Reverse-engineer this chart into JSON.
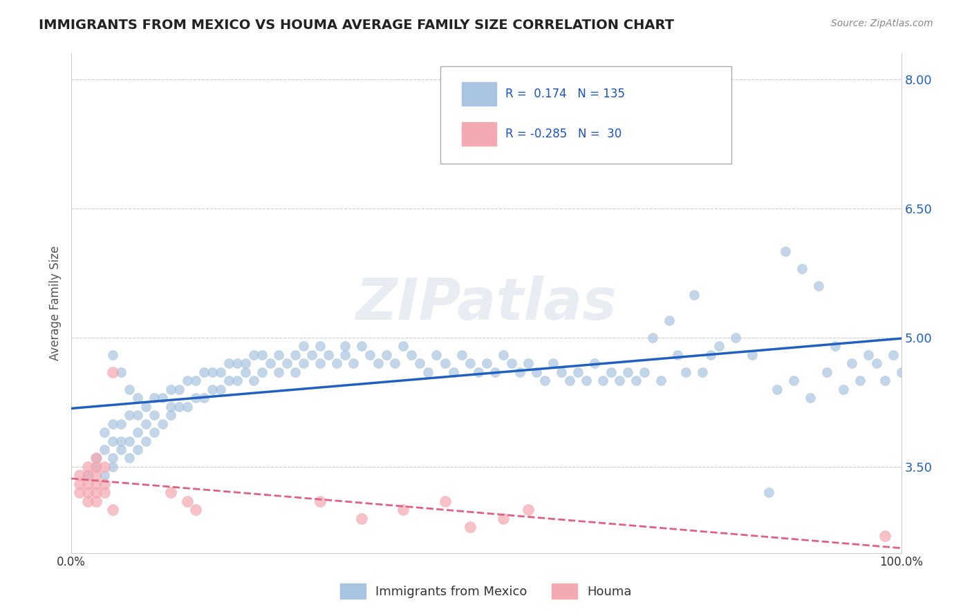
{
  "title": "IMMIGRANTS FROM MEXICO VS HOUMA AVERAGE FAMILY SIZE CORRELATION CHART",
  "source_text": "Source: ZipAtlas.com",
  "xlabel": "",
  "ylabel": "Average Family Size",
  "xmin": 0.0,
  "xmax": 1.0,
  "ymin": 2.5,
  "ymax": 8.3,
  "yticks": [
    3.5,
    5.0,
    6.5,
    8.0
  ],
  "xticks": [
    0.0,
    1.0
  ],
  "xticklabels": [
    "0.0%",
    "100.0%"
  ],
  "legend_labels": [
    "Immigrants from Mexico",
    "Houma"
  ],
  "blue_R": "0.174",
  "blue_N": "135",
  "pink_R": "-0.285",
  "pink_N": "30",
  "blue_color": "#a8c4e0",
  "pink_color": "#f4a8b0",
  "blue_line_color": "#2060c0",
  "pink_line_color": "#e06080",
  "legend_text_color": "#1a52c4",
  "watermark": "ZIPatlas",
  "background_color": "#ffffff",
  "grid_color": "#cccccc",
  "blue_scatter_x": [
    0.02,
    0.03,
    0.03,
    0.04,
    0.04,
    0.04,
    0.05,
    0.05,
    0.05,
    0.05,
    0.06,
    0.06,
    0.06,
    0.07,
    0.07,
    0.07,
    0.08,
    0.08,
    0.08,
    0.08,
    0.09,
    0.09,
    0.09,
    0.1,
    0.1,
    0.1,
    0.11,
    0.11,
    0.12,
    0.12,
    0.12,
    0.13,
    0.13,
    0.14,
    0.14,
    0.15,
    0.15,
    0.16,
    0.16,
    0.17,
    0.17,
    0.18,
    0.18,
    0.19,
    0.19,
    0.2,
    0.2,
    0.21,
    0.21,
    0.22,
    0.22,
    0.23,
    0.23,
    0.24,
    0.25,
    0.25,
    0.26,
    0.27,
    0.27,
    0.28,
    0.28,
    0.29,
    0.3,
    0.3,
    0.31,
    0.32,
    0.33,
    0.33,
    0.34,
    0.35,
    0.36,
    0.37,
    0.38,
    0.39,
    0.4,
    0.41,
    0.42,
    0.43,
    0.44,
    0.45,
    0.46,
    0.47,
    0.48,
    0.49,
    0.5,
    0.51,
    0.52,
    0.53,
    0.54,
    0.55,
    0.56,
    0.57,
    0.58,
    0.59,
    0.6,
    0.61,
    0.62,
    0.63,
    0.64,
    0.65,
    0.66,
    0.67,
    0.68,
    0.69,
    0.7,
    0.71,
    0.72,
    0.73,
    0.74,
    0.75,
    0.76,
    0.77,
    0.78,
    0.8,
    0.82,
    0.84,
    0.86,
    0.88,
    0.9,
    0.92,
    0.94,
    0.96,
    0.97,
    0.98,
    0.99,
    1.0,
    0.85,
    0.87,
    0.89,
    0.91,
    0.93,
    0.95,
    0.05,
    0.06,
    0.07
  ],
  "blue_scatter_y": [
    3.4,
    3.5,
    3.6,
    3.4,
    3.7,
    3.9,
    3.5,
    3.6,
    3.8,
    4.0,
    3.7,
    3.8,
    4.0,
    3.6,
    3.8,
    4.1,
    3.7,
    3.9,
    4.1,
    4.3,
    3.8,
    4.0,
    4.2,
    3.9,
    4.1,
    4.3,
    4.0,
    4.3,
    4.1,
    4.2,
    4.4,
    4.2,
    4.4,
    4.2,
    4.5,
    4.3,
    4.5,
    4.3,
    4.6,
    4.4,
    4.6,
    4.4,
    4.6,
    4.5,
    4.7,
    4.5,
    4.7,
    4.6,
    4.7,
    4.5,
    4.8,
    4.6,
    4.8,
    4.7,
    4.6,
    4.8,
    4.7,
    4.6,
    4.8,
    4.7,
    4.9,
    4.8,
    4.7,
    4.9,
    4.8,
    4.7,
    4.9,
    4.8,
    4.7,
    4.9,
    4.8,
    4.7,
    4.8,
    4.7,
    4.9,
    4.8,
    4.7,
    4.6,
    4.8,
    4.7,
    4.6,
    4.8,
    4.7,
    4.6,
    4.7,
    4.6,
    4.8,
    4.7,
    4.6,
    4.7,
    4.6,
    4.5,
    4.7,
    4.6,
    4.5,
    4.6,
    4.5,
    4.7,
    4.5,
    4.6,
    4.5,
    4.6,
    4.5,
    4.6,
    5.0,
    4.5,
    5.2,
    4.8,
    4.6,
    5.5,
    4.6,
    4.8,
    4.9,
    5.0,
    4.8,
    3.2,
    6.0,
    5.8,
    5.6,
    4.9,
    4.7,
    4.8,
    4.7,
    4.5,
    4.8,
    4.6,
    4.4,
    4.5,
    4.3,
    4.6,
    4.4,
    4.5,
    4.8,
    4.6,
    4.4
  ],
  "pink_scatter_x": [
    0.01,
    0.01,
    0.01,
    0.02,
    0.02,
    0.02,
    0.02,
    0.02,
    0.03,
    0.03,
    0.03,
    0.03,
    0.03,
    0.03,
    0.04,
    0.04,
    0.04,
    0.05,
    0.05,
    0.12,
    0.14,
    0.15,
    0.3,
    0.35,
    0.4,
    0.45,
    0.48,
    0.52,
    0.55,
    0.98
  ],
  "pink_scatter_y": [
    3.2,
    3.3,
    3.4,
    3.1,
    3.2,
    3.3,
    3.4,
    3.5,
    3.1,
    3.2,
    3.3,
    3.4,
    3.5,
    3.6,
    3.2,
    3.3,
    3.5,
    3.0,
    4.6,
    3.2,
    3.1,
    3.0,
    3.1,
    2.9,
    3.0,
    3.1,
    2.8,
    2.9,
    3.0,
    2.7
  ]
}
